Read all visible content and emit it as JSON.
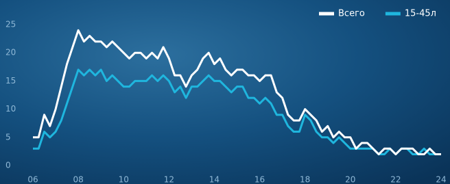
{
  "chart_data": {
    "type": "line",
    "x": [
      6,
      6.25,
      6.5,
      6.75,
      7,
      7.25,
      7.5,
      7.75,
      8,
      8.25,
      8.5,
      8.75,
      9,
      9.25,
      9.5,
      9.75,
      10,
      10.25,
      10.5,
      10.75,
      11,
      11.25,
      11.5,
      11.75,
      12,
      12.25,
      12.5,
      12.75,
      13,
      13.25,
      13.5,
      13.75,
      14,
      14.25,
      14.5,
      14.75,
      15,
      15.25,
      15.5,
      15.75,
      16,
      16.25,
      16.5,
      16.75,
      17,
      17.25,
      17.5,
      17.75,
      18,
      18.25,
      18.5,
      18.75,
      19,
      19.25,
      19.5,
      19.75,
      20,
      20.25,
      20.5,
      20.75,
      21,
      21.25,
      21.5,
      21.75,
      22,
      22.25,
      22.5,
      22.75,
      23,
      23.25,
      23.5,
      23.75,
      24
    ],
    "series": [
      {
        "name": "Всего",
        "color": "#ffffff",
        "values": [
          5,
          5,
          9,
          7,
          10,
          14,
          18,
          21,
          24,
          22,
          23,
          22,
          22,
          21,
          22,
          21,
          20,
          19,
          20,
          20,
          19,
          20,
          19,
          21,
          19,
          16,
          16,
          14,
          16,
          17,
          19,
          20,
          18,
          19,
          17,
          16,
          17,
          17,
          16,
          16,
          15,
          16,
          16,
          13,
          12,
          9,
          8,
          8,
          10,
          9,
          8,
          6,
          7,
          5,
          6,
          5,
          5,
          3,
          4,
          4,
          3,
          2,
          3,
          3,
          2,
          3,
          3,
          3,
          2,
          2,
          3,
          2,
          2
        ]
      },
      {
        "name": "15-45л",
        "color": "#1fb6de",
        "values": [
          3,
          3,
          6,
          5,
          6,
          8,
          11,
          14,
          17,
          16,
          17,
          16,
          17,
          15,
          16,
          15,
          14,
          14,
          15,
          15,
          15,
          16,
          15,
          16,
          15,
          13,
          14,
          12,
          14,
          14,
          15,
          16,
          15,
          15,
          14,
          13,
          14,
          14,
          12,
          12,
          11,
          12,
          11,
          9,
          9,
          7,
          6,
          6,
          9,
          8,
          6,
          5,
          5,
          4,
          5,
          4,
          3,
          3,
          3,
          3,
          3,
          2,
          2,
          3,
          2,
          3,
          3,
          2,
          2,
          3,
          2,
          2,
          2
        ]
      }
    ],
    "xlim": [
      6,
      24
    ],
    "xticks": [
      {
        "value": 6,
        "label": "06"
      },
      {
        "value": 8,
        "label": "08"
      },
      {
        "value": 10,
        "label": "10"
      },
      {
        "value": 12,
        "label": "12"
      },
      {
        "value": 14,
        "label": "14"
      },
      {
        "value": 16,
        "label": "16"
      },
      {
        "value": 18,
        "label": "18"
      },
      {
        "value": 20,
        "label": "20"
      },
      {
        "value": 22,
        "label": "22"
      },
      {
        "value": 24,
        "label": "24"
      }
    ],
    "ylim": [
      0,
      25
    ],
    "yticks": [
      0,
      5,
      10,
      15,
      20,
      25
    ],
    "legend": "top-right"
  }
}
